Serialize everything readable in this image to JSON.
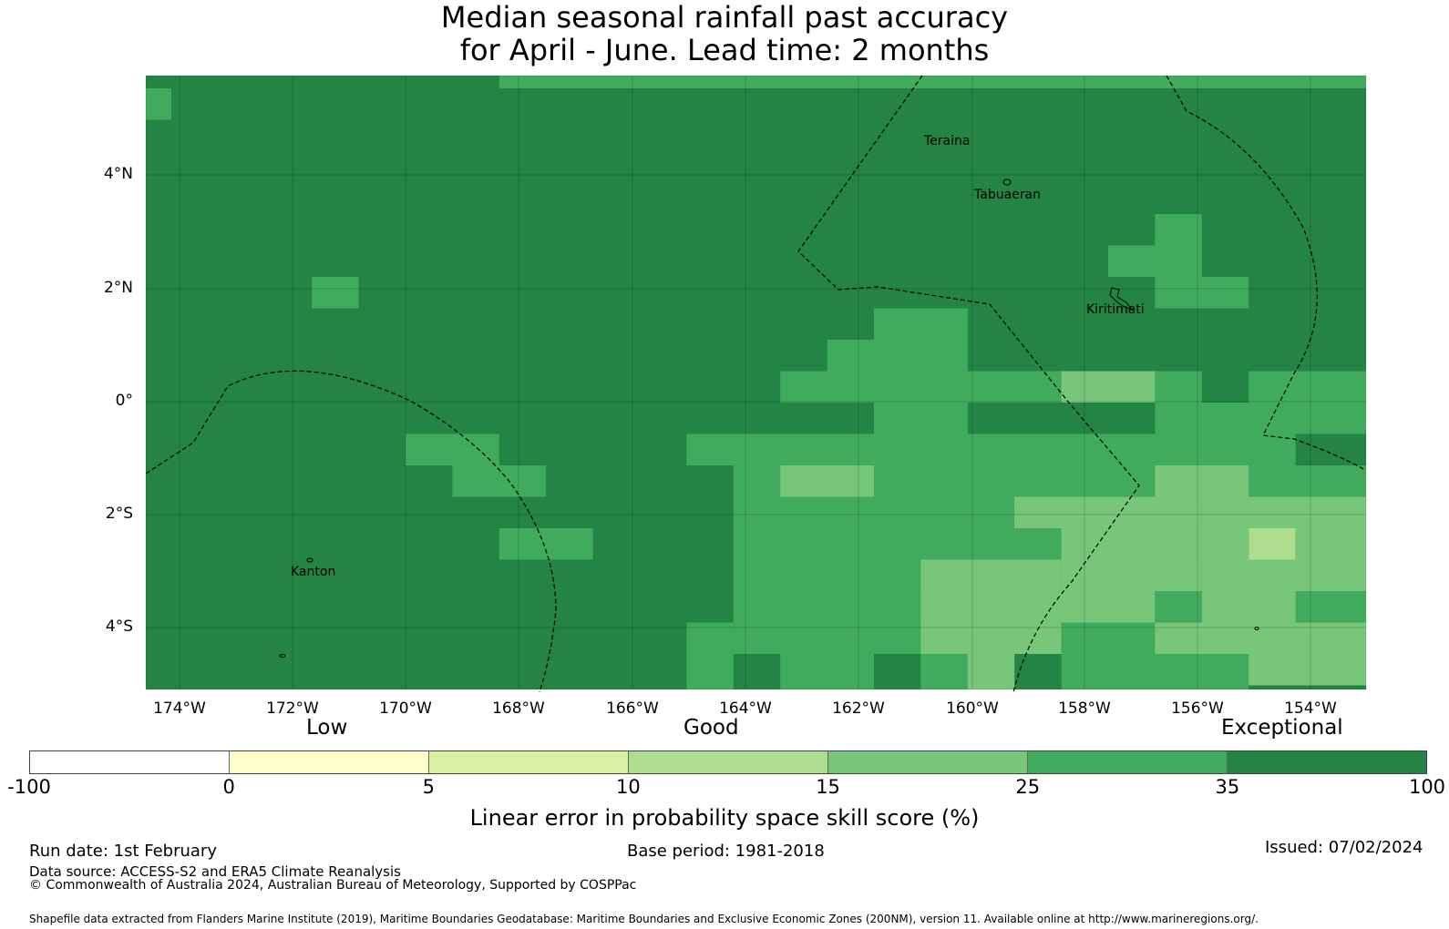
{
  "title": {
    "line1": "Median seasonal rainfall past accuracy",
    "line2": "for April - June. Lead time: 2 months"
  },
  "map": {
    "lon_labels": [
      "174°W",
      "172°W",
      "170°W",
      "168°W",
      "166°W",
      "164°W",
      "162°W",
      "160°W",
      "158°W",
      "156°W",
      "154°W"
    ],
    "lat_labels": [
      "4°N",
      "2°N",
      "0°",
      "2°S",
      "4°S"
    ],
    "places": [
      "Teraina",
      "Tabuaeran",
      "Kiritimati",
      "Kanton"
    ],
    "skill_grid_legend_classes": "values 1-7 index into colorbar.colors (1=0-5 … 7=35-100)"
  },
  "colorbar": {
    "categories": [
      "Low",
      "Good",
      "Exceptional"
    ],
    "ticks": [
      "-100",
      "0",
      "5",
      "10",
      "15",
      "25",
      "35",
      "100"
    ],
    "colors": [
      "#ffffff",
      "#ffffcc",
      "#d9f0a3",
      "#addd8e",
      "#78c679",
      "#41ab5d",
      "#238443"
    ],
    "label": "Linear error in probability space skill score (%)"
  },
  "footer": {
    "run_date": "Run date: 1st February",
    "base_period": "Base period: 1981-2018",
    "issued": "Issued: 07/02/2024",
    "data_source": "Data source: ACCESS-S2 and ERA5 Climate Reanalysis",
    "copyright": "© Commonwealth of Australia 2024, Australian Bureau of Meteorology, Supported by COSPPac",
    "shapefile": "Shapefile data extracted from Flanders Marine Institute (2019), Maritime Boundaries Geodatabase: Maritime Boundaries and Exclusive Economic Zones (200NM), version 11. Available online at http://www.marineregions.org/."
  }
}
